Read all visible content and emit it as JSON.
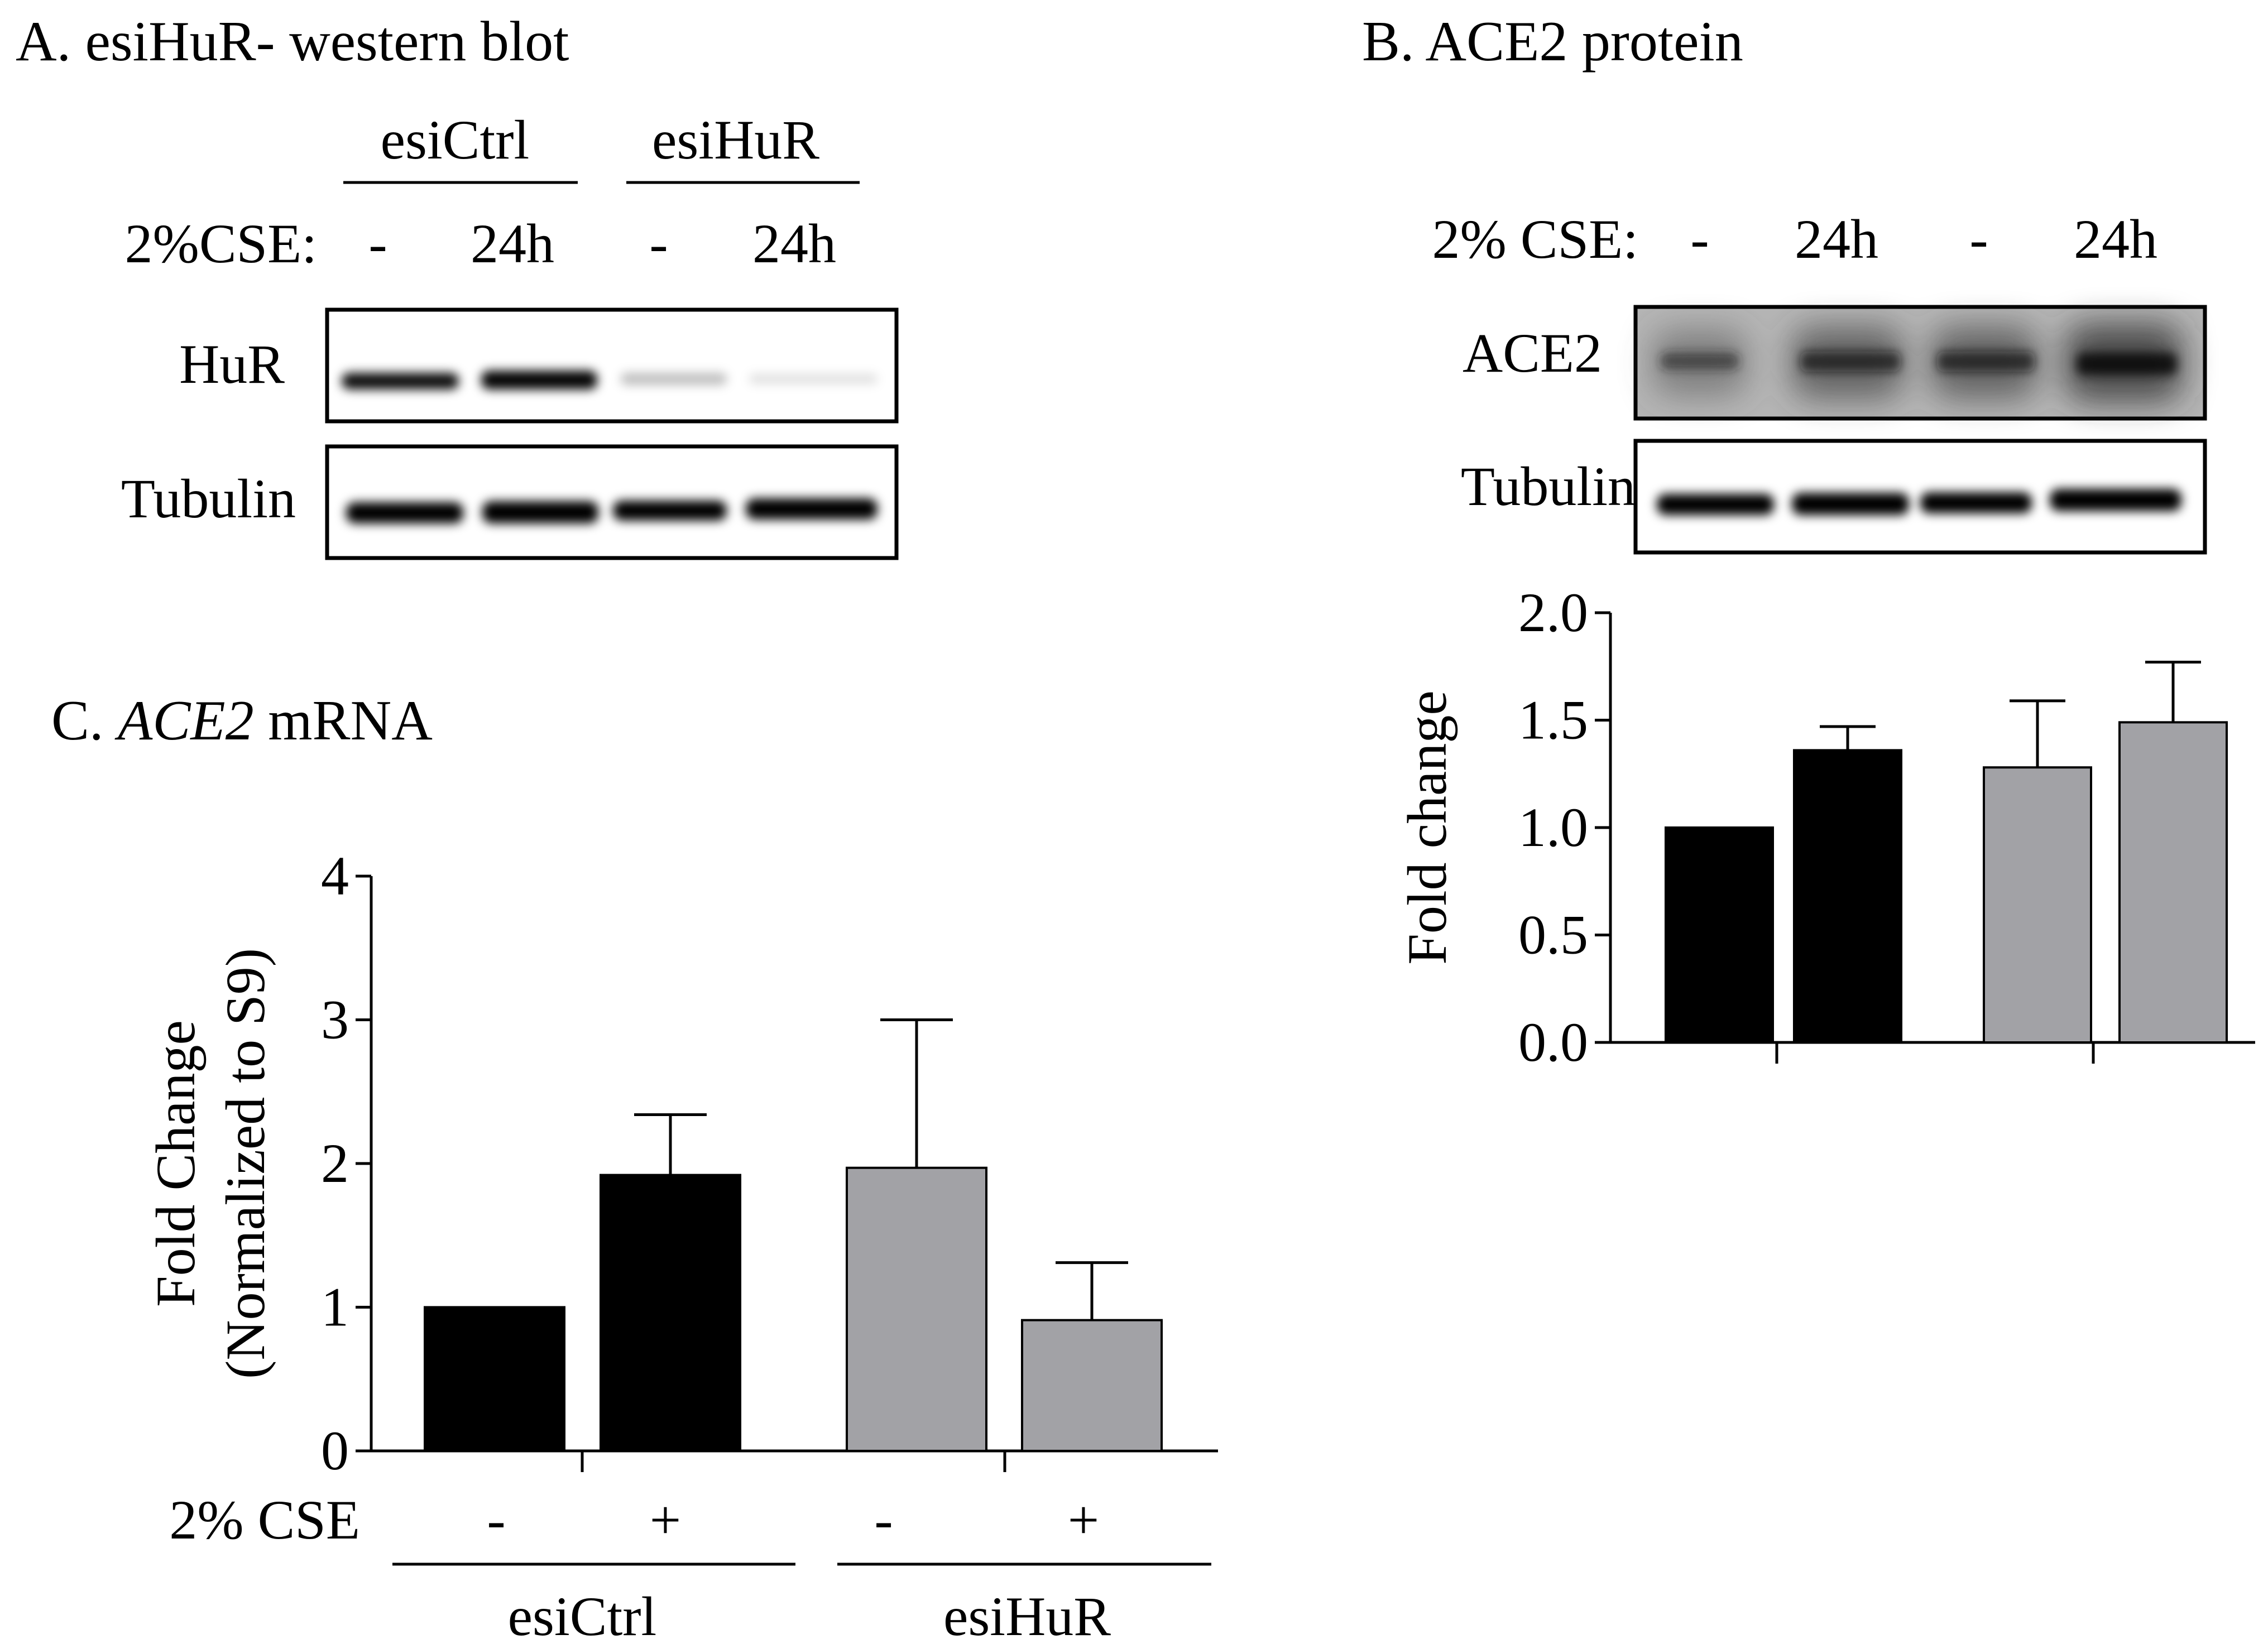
{
  "panel_a": {
    "title": "A. esiHuR- western blot",
    "groups": [
      "esiCtrl",
      "esiHuR"
    ],
    "cse_label": "2%CSE:",
    "lane_labels": [
      "-",
      "24h",
      "-",
      "24h"
    ],
    "row_labels": [
      "HuR",
      "Tubulin"
    ]
  },
  "panel_b": {
    "title": "B. ACE2 protein",
    "cse_label": "2% CSE:",
    "lane_labels": [
      "-",
      "24h",
      "-",
      "24h"
    ],
    "row_labels": [
      "ACE2",
      "Tubulin"
    ]
  },
  "panel_c": {
    "title_prefix": "C. ",
    "title_gene": "ACE2",
    "title_suffix": " mRNA",
    "cse_label": "2% CSE",
    "lane_labels": [
      "-",
      "+",
      "-",
      "+"
    ],
    "groups": [
      "esiCtrl",
      "esiHuR"
    ]
  },
  "colors": {
    "esiCtrl": "#000000",
    "esiHuR": "#a2a2a6",
    "axis": "#000000"
  },
  "chart_data": [
    {
      "id": "ace2-protein",
      "type": "bar",
      "categories": [
        "esiCtrl -",
        "esiCtrl 24h",
        "esiHuR -",
        "esiHuR 24h"
      ],
      "values": [
        1.0,
        1.36,
        1.28,
        1.49
      ],
      "errors": [
        0,
        0.11,
        0.31,
        0.28
      ],
      "colors": [
        "#000000",
        "#000000",
        "#a2a2a6",
        "#a2a2a6"
      ],
      "ylabel": "Fold change",
      "ylim": [
        0,
        2.0
      ],
      "yticks": [
        "0.0",
        "0.5",
        "1.0",
        "1.5",
        "2.0"
      ],
      "xlabel": "",
      "grid": false
    },
    {
      "id": "ace2-mrna",
      "type": "bar",
      "categories": [
        "esiCtrl -",
        "esiCtrl +",
        "esiHuR -",
        "esiHuR +"
      ],
      "values": [
        1.0,
        1.92,
        1.97,
        0.91
      ],
      "errors": [
        0,
        0.42,
        1.03,
        0.4
      ],
      "colors": [
        "#000000",
        "#000000",
        "#a2a2a6",
        "#a2a2a6"
      ],
      "ylabel": [
        "Fold Change",
        "(Normalized to S9)"
      ],
      "ylim": [
        0,
        4
      ],
      "yticks": [
        "0",
        "1",
        "2",
        "3",
        "4"
      ],
      "xlabel": "",
      "grid": false
    }
  ]
}
